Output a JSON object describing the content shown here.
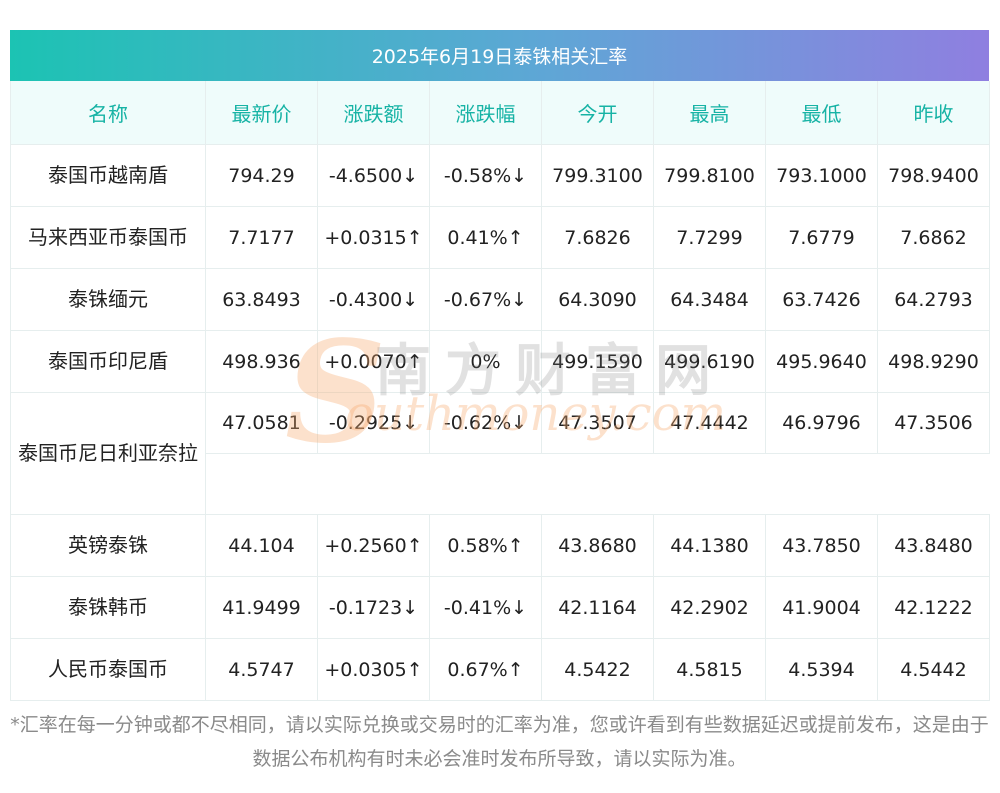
{
  "title": "2025年6月19日泰铢相关汇率",
  "headers": [
    "名称",
    "最新价",
    "涨跌额",
    "涨跌幅",
    "今开",
    "最高",
    "最低",
    "昨收"
  ],
  "rows": [
    {
      "name": "泰国币越南盾",
      "latest": "794.29",
      "change": "-4.6500↓",
      "pct": "-0.58%↓",
      "open": "799.3100",
      "high": "799.8100",
      "low": "793.1000",
      "prev": "798.9400",
      "trend": "down"
    },
    {
      "name": "马来西亚币泰国币",
      "latest": "7.7177",
      "change": "+0.0315↑",
      "pct": "0.41%↑",
      "open": "7.6826",
      "high": "7.7299",
      "low": "7.6779",
      "prev": "7.6862",
      "trend": "up"
    },
    {
      "name": "泰铢缅元",
      "latest": "63.8493",
      "change": "-0.4300↓",
      "pct": "-0.67%↓",
      "open": "64.3090",
      "high": "64.3484",
      "low": "63.7426",
      "prev": "64.2793",
      "trend": "down"
    },
    {
      "name": "泰国币印尼盾",
      "latest": "498.936",
      "change": "+0.0070↑",
      "pct": "0%",
      "open": "499.1590",
      "high": "499.6190",
      "low": "495.9640",
      "prev": "498.9290",
      "trend": "flat"
    },
    {
      "name": "泰国币尼日利亚奈拉",
      "latest": "47.0581",
      "change": "-0.2925↓",
      "pct": "-0.62%↓",
      "open": "47.3507",
      "high": "47.4442",
      "low": "46.9796",
      "prev": "47.3506",
      "trend": "down",
      "wrap": true
    },
    {
      "name": "英镑泰铢",
      "latest": "44.104",
      "change": "+0.2560↑",
      "pct": "0.58%↑",
      "open": "43.8680",
      "high": "44.1380",
      "low": "43.7850",
      "prev": "43.8480",
      "trend": "up"
    },
    {
      "name": "泰铢韩币",
      "latest": "41.9499",
      "change": "-0.1723↓",
      "pct": "-0.41%↓",
      "open": "42.1164",
      "high": "42.2902",
      "low": "41.9004",
      "prev": "42.1222",
      "trend": "down"
    },
    {
      "name": "人民币泰国币",
      "latest": "4.5747",
      "change": "+0.0305↑",
      "pct": "0.67%↑",
      "open": "4.5422",
      "high": "4.5815",
      "low": "4.5394",
      "prev": "4.5442",
      "trend": "up"
    }
  ],
  "watermark": {
    "logo_letter": "S",
    "cn": "南方财富网",
    "en": "outhmoney.com"
  },
  "footnote": "*汇率在每一分钟或都不尽相同，请以实际兑换或交易时的汇率为准，您或许看到有些数据延迟或提前发布，这是由于数据公布机构有时未必会准时发布所导致，请以实际为准。",
  "colors": {
    "up": "#ee2020",
    "down": "#1a8a2a",
    "header_text": "#17b3a5",
    "header_bg": "#effcfb"
  }
}
